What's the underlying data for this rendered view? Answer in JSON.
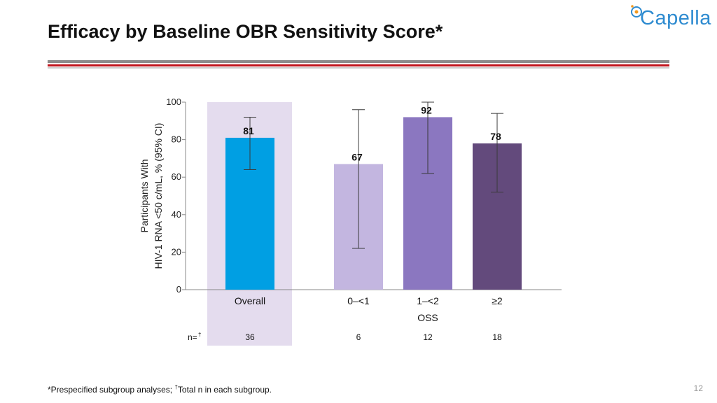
{
  "header": {
    "title": "Efficacy by Baseline OBR Sensitivity Score*",
    "logo_text": "Capella"
  },
  "colors": {
    "rule_gray": "#8c8c8c",
    "rule_red": "#c0141c",
    "rule_light": "#cfcfcf",
    "highlight": "#e4dcee",
    "logo_blue": "#2e8bd0",
    "logo_orange": "#f29a1f"
  },
  "chart_data": {
    "type": "bar",
    "categories": [
      "Overall",
      "0–<1",
      "1–<2",
      "≥2"
    ],
    "values": [
      81,
      67,
      92,
      78
    ],
    "value_labels": [
      "81",
      "67",
      "92",
      "78"
    ],
    "ci_lower": [
      64,
      22,
      62,
      52
    ],
    "ci_upper": [
      92,
      96,
      100,
      94
    ],
    "bar_colors": [
      "#009fe3",
      "#c3b6e0",
      "#8b77c0",
      "#634a7c"
    ],
    "ylabel_line1": "Participants With",
    "ylabel_line2": "HIV-1 RNA <50 c/mL, % (95% CI)",
    "yticks": [
      "0",
      "20",
      "40",
      "60",
      "80",
      "100"
    ],
    "ylim": [
      0,
      100
    ],
    "group_label": "OSS",
    "n_prefix": "n=",
    "n_sup": "†",
    "n_values": [
      "36",
      "6",
      "12",
      "18"
    ],
    "grid": false,
    "highlighted_category": "Overall"
  },
  "footer": {
    "footnote_a": "*Prespecified subgroup analyses; ",
    "footnote_sup": "†",
    "footnote_b": "Total n in each subgroup.",
    "page_number": "12"
  }
}
